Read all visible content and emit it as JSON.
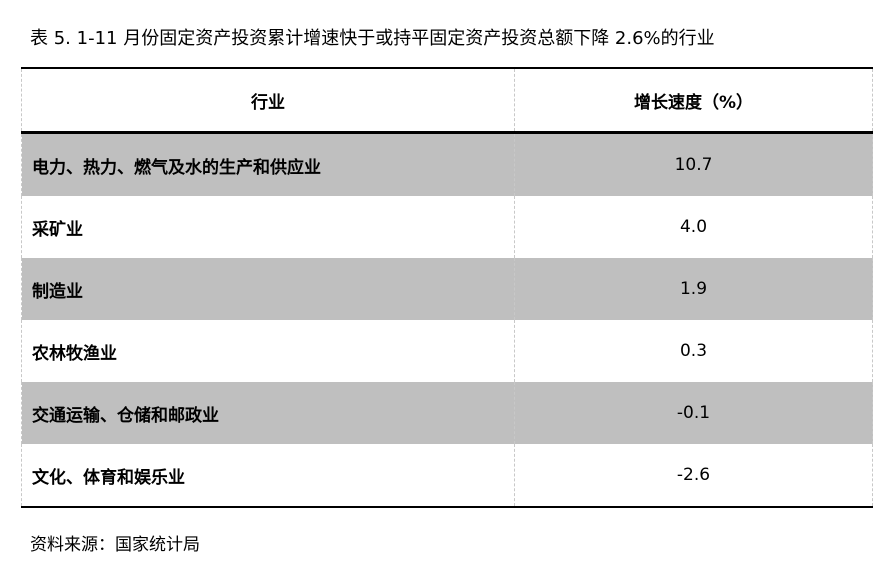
{
  "title": "表 5.   1-11 月份固定资产投资累计增速快于或持平固定资产投资总额下降 2.6%的行业",
  "table": {
    "headers": [
      "行业",
      "增长速度（%）"
    ],
    "rows": [
      {
        "industry": "电力、热力、燃气及水的生产和供应业",
        "growth": "10.7"
      },
      {
        "industry": "采矿业",
        "growth": "4.0"
      },
      {
        "industry": "制造业",
        "growth": "1.9"
      },
      {
        "industry": "农林牧渔业",
        "growth": "0.3"
      },
      {
        "industry": "交通运输、仓储和邮政业",
        "growth": "-0.1"
      },
      {
        "industry": "文化、体育和娱乐业",
        "growth": "-2.6"
      }
    ]
  },
  "source": "资料来源：国家统计局",
  "colors": {
    "shaded_row": "#bfbfbf"
  }
}
